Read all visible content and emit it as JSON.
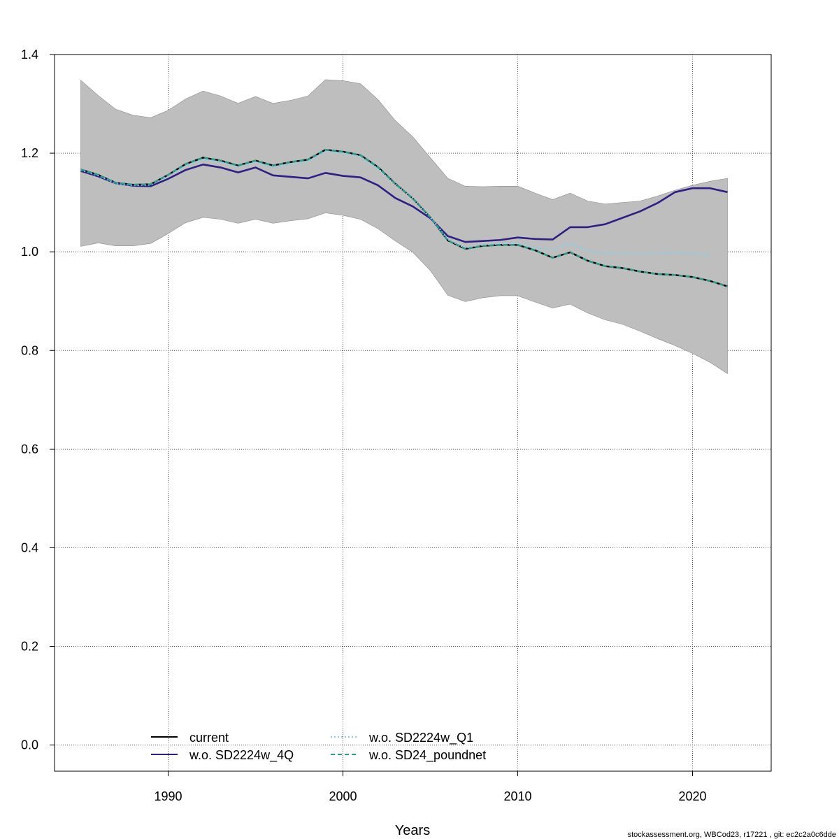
{
  "chart_data": {
    "type": "line",
    "title": "",
    "xlabel": "Years",
    "ylabel": "",
    "xlim": [
      1983.5,
      2024.5
    ],
    "ylim": [
      -0.053,
      1.4
    ],
    "x_ticks": [
      1990,
      2000,
      2010,
      2020
    ],
    "y_ticks": [
      0.0,
      0.2,
      0.4,
      0.6,
      0.8,
      1.0,
      1.2,
      1.4
    ],
    "x_tick_labels": [
      "1990",
      "2000",
      "2010",
      "2020"
    ],
    "y_tick_labels": [
      "0.0",
      "0.2",
      "0.4",
      "0.6",
      "0.8",
      "1.0",
      "1.2",
      "1.4"
    ],
    "grid": true,
    "legend_position": "bottom-left",
    "band": {
      "name": "",
      "color": "#bebebe",
      "x": [
        1985,
        1986,
        1987,
        1988,
        1989,
        1990,
        1991,
        1992,
        1993,
        1994,
        1995,
        1996,
        1997,
        1998,
        1999,
        2000,
        2001,
        2002,
        2003,
        2004,
        2005,
        2006,
        2007,
        2008,
        2009,
        2010,
        2011,
        2012,
        2013,
        2014,
        2015,
        2016,
        2017,
        2018,
        2019,
        2020,
        2021,
        2022
      ],
      "upper": [
        1.348,
        1.317,
        1.289,
        1.277,
        1.272,
        1.287,
        1.31,
        1.326,
        1.316,
        1.301,
        1.315,
        1.301,
        1.307,
        1.316,
        1.349,
        1.347,
        1.341,
        1.309,
        1.266,
        1.233,
        1.191,
        1.149,
        1.133,
        1.132,
        1.133,
        1.133,
        1.119,
        1.106,
        1.119,
        1.103,
        1.097,
        1.1,
        1.103,
        1.113,
        1.125,
        1.135,
        1.143,
        1.149
      ],
      "lower": [
        1.011,
        1.018,
        1.012,
        1.012,
        1.017,
        1.037,
        1.059,
        1.07,
        1.066,
        1.058,
        1.066,
        1.058,
        1.063,
        1.067,
        1.079,
        1.074,
        1.066,
        1.047,
        1.022,
        0.999,
        0.962,
        0.912,
        0.899,
        0.907,
        0.911,
        0.911,
        0.898,
        0.886,
        0.894,
        0.876,
        0.862,
        0.853,
        0.839,
        0.824,
        0.81,
        0.794,
        0.776,
        0.753
      ]
    },
    "x": [
      1985,
      1986,
      1987,
      1988,
      1989,
      1990,
      1991,
      1992,
      1993,
      1994,
      1995,
      1996,
      1997,
      1998,
      1999,
      2000,
      2001,
      2002,
      2003,
      2004,
      2005,
      2006,
      2007,
      2008,
      2009,
      2010,
      2011,
      2012,
      2013,
      2014,
      2015,
      2016,
      2017,
      2018,
      2019,
      2020,
      2021,
      2022
    ],
    "series": [
      {
        "name": "current",
        "color": "#000000",
        "dash": "solid",
        "values": [
          1.167,
          1.156,
          1.14,
          1.136,
          1.137,
          1.156,
          1.178,
          1.191,
          1.185,
          1.175,
          1.185,
          1.175,
          1.182,
          1.187,
          1.207,
          1.203,
          1.196,
          1.172,
          1.138,
          1.108,
          1.07,
          1.023,
          1.006,
          1.012,
          1.014,
          1.014,
          1.003,
          0.988,
          0.999,
          0.982,
          0.971,
          0.967,
          0.96,
          0.955,
          0.953,
          0.949,
          0.941,
          0.93
        ]
      },
      {
        "name": "w.o. SD2224w_4Q",
        "color": "#2d1f85",
        "dash": "solid",
        "values": [
          1.164,
          1.153,
          1.139,
          1.134,
          1.133,
          1.148,
          1.166,
          1.177,
          1.171,
          1.161,
          1.171,
          1.155,
          1.152,
          1.149,
          1.16,
          1.154,
          1.151,
          1.135,
          1.109,
          1.092,
          1.068,
          1.032,
          1.02,
          1.022,
          1.024,
          1.029,
          1.026,
          1.025,
          1.05,
          1.05,
          1.056,
          1.069,
          1.082,
          1.099,
          1.121,
          1.129,
          1.129,
          1.121
        ]
      },
      {
        "name": "w.o. SD2224w_Q1",
        "color": "#87ceeb",
        "dash": "dotted",
        "values": [
          1.166,
          1.155,
          1.139,
          1.135,
          1.136,
          1.154,
          1.174,
          1.187,
          1.182,
          1.172,
          1.182,
          1.171,
          1.177,
          1.183,
          1.204,
          1.2,
          1.193,
          1.169,
          1.137,
          1.108,
          1.07,
          1.025,
          1.008,
          1.014,
          1.016,
          1.017,
          1.008,
          1.005,
          1.017,
          1.002,
          0.997,
          0.997,
          0.996,
          0.997,
          0.999,
          0.997,
          0.993,
          null
        ]
      },
      {
        "name": "w.o. SD24_poundnet",
        "color": "#2e9c88",
        "dash": "dashed",
        "values": [
          1.167,
          1.156,
          1.14,
          1.136,
          1.137,
          1.156,
          1.178,
          1.191,
          1.185,
          1.175,
          1.185,
          1.175,
          1.182,
          1.187,
          1.207,
          1.203,
          1.196,
          1.172,
          1.138,
          1.108,
          1.07,
          1.023,
          1.006,
          1.012,
          1.014,
          1.014,
          1.003,
          0.988,
          0.999,
          0.982,
          0.971,
          0.967,
          0.96,
          0.955,
          0.953,
          0.949,
          0.941,
          0.93
        ]
      }
    ],
    "legend": [
      {
        "label": "current",
        "color": "#000000",
        "dash": "solid"
      },
      {
        "label": "w.o. SD2224w_4Q",
        "color": "#2d1f85",
        "dash": "solid"
      },
      {
        "label": "w.o. SD2224w_Q1",
        "color": "#87ceeb",
        "dash": "dotted"
      },
      {
        "label": "w.o. SD24_poundnet",
        "color": "#2e9c88",
        "dash": "dashed"
      }
    ],
    "footer": "stockassessment.org, WBCod23, r17221 , git: ec2c2a0c6dde"
  }
}
